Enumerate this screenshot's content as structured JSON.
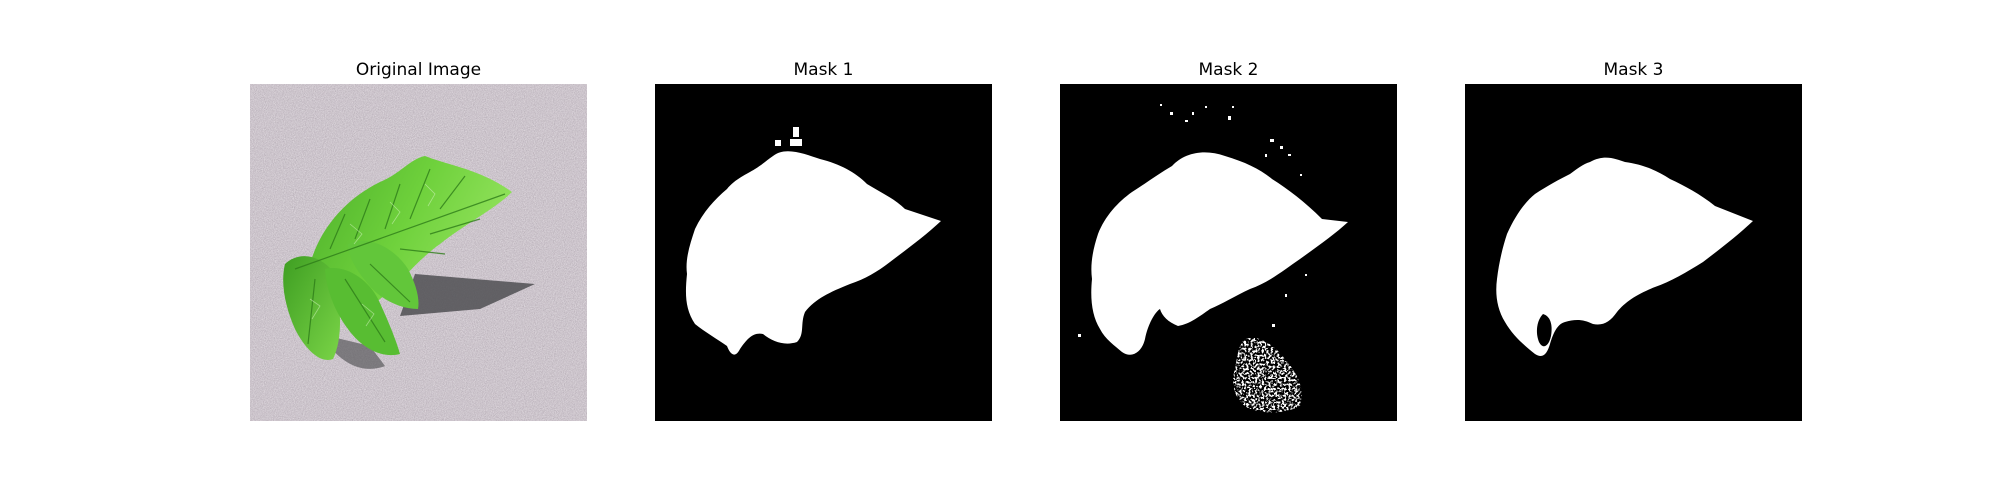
{
  "figure": {
    "panels": [
      {
        "title": "Original Image"
      },
      {
        "title": "Mask 1"
      },
      {
        "title": "Mask 2"
      },
      {
        "title": "Mask 3"
      }
    ]
  },
  "colors": {
    "background": "#ffffff",
    "mask_background": "#000000",
    "mask_foreground": "#ffffff",
    "ground": "#cbc2c9",
    "leaf_dark": "#2f9a1a",
    "leaf_light": "#7fdc4a",
    "shadow": "#545454"
  }
}
